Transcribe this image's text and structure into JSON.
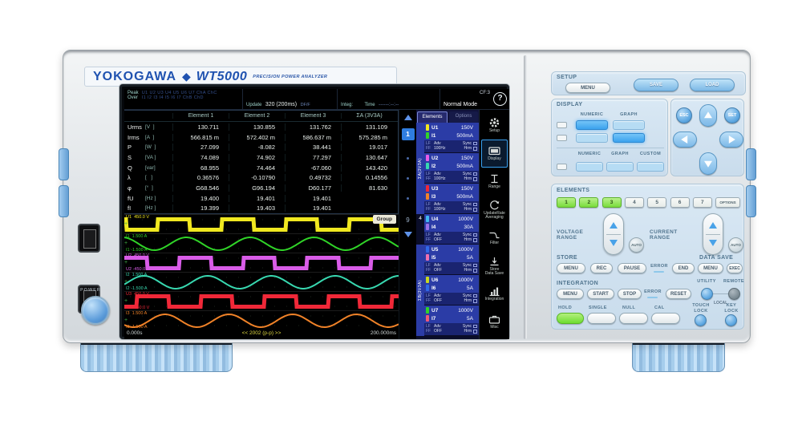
{
  "branding": {
    "maker": "YOKOGAWA",
    "diamond": "◆",
    "model": "WT5000",
    "tagline": "PRECISION POWER ANALYZER"
  },
  "left_controls": {
    "power_label": "POWER"
  },
  "screen": {
    "status": {
      "peak_label": "Peak",
      "over_label": "Over",
      "peak_row": "U1 U2 U3 U4 U5 U6 U7 ChA ChC",
      "over_row": "I1 I2 I3 I4 I5 I6 I7 ChB ChD",
      "update_label": "Update",
      "update_value": "320 (200ms)",
      "update_extra": "DF/F",
      "integ_label": "Integ:",
      "time_label": "Time",
      "time_value": "------:--:--",
      "mode": "Normal Mode",
      "cf": "CF:3",
      "help": "?"
    },
    "table": {
      "headers": [
        "Element 1",
        "Element 2",
        "Element 3",
        "ΣA (3V3A)"
      ],
      "rows": [
        {
          "name": "Urms",
          "unit": "[V  ]",
          "values": [
            "130.711",
            "130.855",
            "131.762",
            "131.109"
          ]
        },
        {
          "name": "Irms",
          "unit": "[A  ]",
          "values": [
            "566.815 m",
            "572.402 m",
            "586.637 m",
            "575.285 m"
          ]
        },
        {
          "name": "P",
          "unit": "[W  ]",
          "values": [
            "27.099",
            "-8.082",
            "38.441",
            "19.017"
          ]
        },
        {
          "name": "S",
          "unit": "[VA ]",
          "values": [
            "74.089",
            "74.902",
            "77.297",
            "130.647"
          ]
        },
        {
          "name": "Q",
          "unit": "[var]",
          "values": [
            "68.955",
            "74.464",
            "-67.060",
            "143.420"
          ]
        },
        {
          "name": "λ",
          "unit": "[   ]",
          "values": [
            "0.36576",
            "-0.10790",
            "0.49732",
            "0.14556"
          ]
        },
        {
          "name": "φ",
          "unit": "[°  ]",
          "values": [
            "G68.546",
            "G96.194",
            "D60.177",
            "81.630"
          ]
        },
        {
          "name": "fU",
          "unit": "[Hz ]",
          "values": [
            "19.400",
            "19.401",
            "19.401",
            ""
          ]
        },
        {
          "name": "fI",
          "unit": "[Hz ]",
          "values": [
            "19.399",
            "19.403",
            "19.401",
            ""
          ]
        }
      ]
    },
    "pager": {
      "current": "1",
      "last": "9"
    },
    "waveforms": {
      "group_label": "Group",
      "cycles": 4.3,
      "time_start": "0.000s",
      "time_center": "<< 2002 (p-p) >>",
      "time_end": "200.000ms",
      "channels": [
        {
          "name": "U1",
          "top": "450.0 V",
          "bottom": "-450.0 V",
          "color": "#f0e820",
          "shape": "square",
          "phase": 170
        },
        {
          "name": "I1",
          "top": "1.500 A",
          "bottom": "-1.500 A",
          "color": "#30d428",
          "shape": "sine",
          "phase": 100
        },
        {
          "name": "U2",
          "top": "450.0 V",
          "bottom": "-450.0 V",
          "color": "#d95ce8",
          "shape": "square",
          "phase": 50
        },
        {
          "name": "I2",
          "top": "1.500 A",
          "bottom": "-1.500 A",
          "color": "#38d8b0",
          "shape": "sine",
          "phase": -20
        },
        {
          "name": "U3",
          "top": "450.0 V",
          "bottom": "-450.0 V",
          "color": "#f02838",
          "shape": "square",
          "phase": -70
        },
        {
          "name": "I3",
          "top": "1.500 A",
          "bottom": "-1.500 A",
          "color": "#f08228",
          "shape": "sine",
          "phase": -140
        }
      ]
    },
    "element_panel": {
      "tabs": {
        "elements": "Elements",
        "options": "Options"
      },
      "groups": [
        {
          "rail": "ΣA(3V3A)",
          "kind": "sum",
          "items": [
            0,
            1,
            2
          ]
        },
        {
          "rail": "4",
          "kind": "one",
          "items": [
            3
          ]
        },
        {
          "rail": "ΣB(3V3A)",
          "kind": "sum",
          "items": [
            4,
            5,
            6
          ]
        }
      ],
      "elements": [
        {
          "u": "U1",
          "u_range": "150V",
          "u_color": "#f0e820",
          "i": "I1",
          "i_range": "500mA",
          "i_color": "#30d428",
          "lf": "LF",
          "ff": "FF",
          "adv": "Adv",
          "freq": "100Hz",
          "sync": "Sync",
          "hrm": "Hrm"
        },
        {
          "u": "U2",
          "u_range": "150V",
          "u_color": "#e85ce8",
          "i": "I2",
          "i_range": "500mA",
          "i_color": "#38d8b0",
          "lf": "LF",
          "ff": "FF",
          "adv": "Adv",
          "freq": "100Hz",
          "sync": "Sync",
          "hrm": "Hrm"
        },
        {
          "u": "U3",
          "u_range": "150V",
          "u_color": "#f02838",
          "i": "I3",
          "i_range": "500mA",
          "i_color": "#f08228",
          "lf": "LF",
          "ff": "FF",
          "adv": "Adv",
          "freq": "100Hz",
          "sync": "Sync",
          "hrm": "Hrm"
        },
        {
          "u": "U4",
          "u_range": "1000V",
          "u_color": "#40b8f0",
          "i": "I4",
          "i_range": "30A",
          "i_color": "#9a70e8",
          "lf": "LF",
          "ff": "FF",
          "adv": "Adv",
          "freq": "OFF",
          "sync": "Sync",
          "hrm": "Hrm"
        },
        {
          "u": "U5",
          "u_range": "1000V",
          "u_color": "#3068e8",
          "i": "I5",
          "i_range": "5A",
          "i_color": "#f070b0",
          "lf": "LF",
          "ff": "FF",
          "adv": "Adv",
          "freq": "OFF",
          "sync": "Sync",
          "hrm": "Hrm"
        },
        {
          "u": "U6",
          "u_range": "1000V",
          "u_color": "#c8d820",
          "i": "I6",
          "i_range": "5A",
          "i_color": "#3068e8",
          "lf": "LF",
          "ff": "FF",
          "adv": "Adv",
          "freq": "OFF",
          "sync": "Sync",
          "hrm": "Hrm"
        },
        {
          "u": "U7",
          "u_range": "1000V",
          "u_color": "#30d428",
          "i": "I7",
          "i_range": "5A",
          "i_color": "#f05878",
          "lf": "LF",
          "ff": "FF",
          "adv": "Adv",
          "freq": "OFF",
          "sync": "Sync",
          "hrm": "Hrm"
        }
      ]
    },
    "icon_bar": [
      {
        "label": "Setup",
        "icon": "gear"
      },
      {
        "label": "Display",
        "icon": "display",
        "active": true
      },
      {
        "label": "Range",
        "icon": "range"
      },
      {
        "label": "UpdateRate\nAveraging",
        "icon": "update"
      },
      {
        "label": "Filter",
        "icon": "filter"
      },
      {
        "label": "Store\nData Save",
        "icon": "store"
      },
      {
        "label": "Integration",
        "icon": "integration"
      },
      {
        "label": "Misc",
        "icon": "misc"
      }
    ]
  },
  "panel": {
    "setup": {
      "title": "SETUP",
      "menu": "MENU",
      "save": "SAVE",
      "load": "LOAD"
    },
    "display": {
      "title": "DISPLAY",
      "numeric": "NUMERIC",
      "graph": "GRAPH",
      "numeric2": "NUMERIC",
      "graph2": "GRAPH",
      "custom": "CUSTOM"
    },
    "nav": {
      "esc": "ESC",
      "set": "SET"
    },
    "elements_section": {
      "title": "ELEMENTS",
      "keys": [
        "1",
        "2",
        "3",
        "4",
        "5",
        "6",
        "7"
      ],
      "lit": [
        "1",
        "2",
        "3"
      ],
      "options": "OPTIONS"
    },
    "voltage_range": {
      "title": "VOLTAGE RANGE",
      "auto": "AUTO"
    },
    "current_range": {
      "title": "CURRENT RANGE",
      "auto": "AUTO"
    },
    "store": {
      "title": "STORE",
      "menu": "MENU",
      "rec": "REC",
      "pause": "PAUSE",
      "error": "ERROR",
      "end": "END"
    },
    "data_save": {
      "title": "DATA SAVE",
      "menu": "MENU",
      "exec": "EXEC"
    },
    "integration": {
      "title": "INTEGRATION",
      "menu": "MENU",
      "start": "START",
      "stop": "STOP",
      "error": "ERROR",
      "reset": "RESET"
    },
    "utility": {
      "utility": "UTILITY",
      "remote": "REMOTE",
      "local": "LOCAL"
    },
    "bottom": {
      "hold": "HOLD",
      "single": "SINGLE",
      "null": "NULL",
      "cal": "CAL",
      "touch_lock": "TOUCH\nLOCK",
      "key_lock": "KEY\nLOCK"
    }
  }
}
